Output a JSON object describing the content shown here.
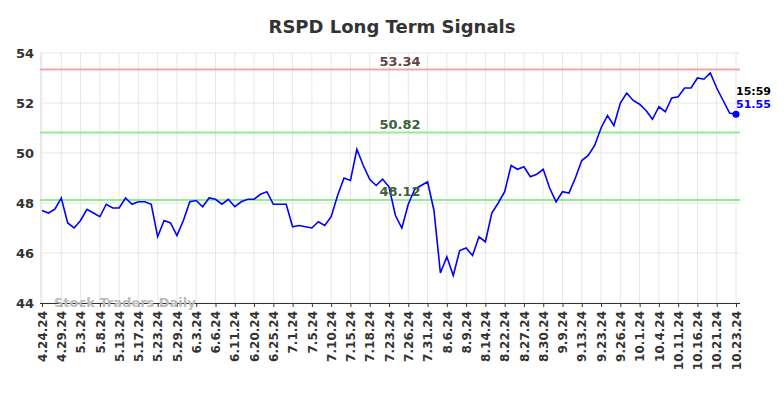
{
  "chart_data": {
    "type": "line",
    "title": "RSPD Long Term Signals",
    "watermark": "Stock Traders Daily",
    "categories": [
      "4.24.24",
      null,
      null,
      "4.29.24",
      null,
      null,
      "5.3.24",
      null,
      null,
      "5.8.24",
      null,
      null,
      "5.13.24",
      null,
      null,
      "5.17.24",
      null,
      null,
      "5.23.24",
      null,
      null,
      "5.29.24",
      null,
      null,
      "6.3.24",
      null,
      null,
      "6.6.24",
      null,
      null,
      "6.11.24",
      null,
      null,
      "6.20.24",
      null,
      null,
      "6.25.24",
      null,
      null,
      "7.1.24",
      null,
      null,
      "7.5.24",
      null,
      null,
      "7.10.24",
      null,
      null,
      "7.15.24",
      null,
      null,
      "7.18.24",
      null,
      null,
      "7.23.24",
      null,
      null,
      "7.26.24",
      null,
      null,
      "7.31.24",
      null,
      null,
      "8.6.24",
      null,
      null,
      "8.9.24",
      null,
      null,
      "8.14.24",
      null,
      null,
      "8.22.24",
      null,
      null,
      "8.27.24",
      null,
      null,
      "8.30.24",
      null,
      null,
      "9.9.24",
      null,
      null,
      "9.13.24",
      null,
      null,
      "9.23.24",
      null,
      null,
      "9.26.24",
      null,
      null,
      "10.1.24",
      null,
      null,
      "10.4.24",
      null,
      null,
      "10.11.24",
      null,
      null,
      "10.16.24",
      null,
      null,
      "10.21.24",
      null,
      null,
      "10.23.24"
    ],
    "values": [
      47.7,
      47.6,
      47.75,
      48.2,
      47.2,
      47.0,
      47.3,
      47.75,
      47.6,
      47.45,
      47.95,
      47.8,
      47.8,
      48.2,
      47.95,
      48.05,
      48.05,
      47.95,
      46.65,
      47.3,
      47.2,
      46.7,
      47.3,
      48.05,
      48.1,
      47.85,
      48.2,
      48.15,
      47.95,
      48.15,
      47.85,
      48.05,
      48.15,
      48.15,
      48.35,
      48.45,
      47.95,
      47.95,
      47.95,
      47.05,
      47.1,
      47.05,
      47.0,
      47.25,
      47.1,
      47.45,
      48.3,
      49.0,
      48.9,
      50.15,
      49.5,
      48.95,
      48.7,
      48.95,
      48.65,
      47.5,
      47.0,
      47.95,
      48.55,
      48.7,
      48.85,
      47.7,
      45.2,
      45.85,
      45.1,
      46.1,
      46.2,
      45.9,
      46.65,
      46.45,
      47.6,
      48.0,
      48.45,
      49.5,
      49.35,
      49.45,
      49.05,
      49.15,
      49.35,
      48.6,
      48.05,
      48.45,
      48.4,
      49.0,
      49.7,
      49.9,
      50.3,
      51.0,
      51.5,
      51.1,
      52.0,
      52.4,
      52.1,
      51.95,
      51.7,
      51.35,
      51.85,
      51.65,
      52.2,
      52.25,
      52.6,
      52.6,
      53.0,
      52.95,
      53.2,
      52.6,
      52.1,
      51.6,
      51.55
    ],
    "color": "#0000ff",
    "ylim": [
      44,
      54
    ],
    "yticks": [
      44,
      46,
      48,
      50,
      52,
      54
    ],
    "grid": true,
    "reference_lines": [
      {
        "value": 53.34,
        "color": "#f4a6a6"
      },
      {
        "value": 50.82,
        "color": "#90ee90"
      },
      {
        "value": 48.12,
        "color": "#90ee90"
      }
    ],
    "annotations": {
      "time": "15:59",
      "last_value": "51.55"
    }
  }
}
